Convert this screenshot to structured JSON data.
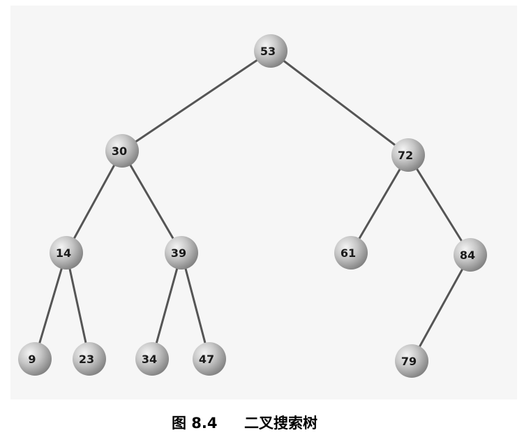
{
  "diagram": {
    "type": "binary-search-tree",
    "node_color": "#b9b9b9",
    "edge_color": "#555555",
    "nodes": [
      {
        "id": "n53",
        "label": "53"
      },
      {
        "id": "n30",
        "label": "30"
      },
      {
        "id": "n72",
        "label": "72"
      },
      {
        "id": "n14",
        "label": "14"
      },
      {
        "id": "n39",
        "label": "39"
      },
      {
        "id": "n61",
        "label": "61"
      },
      {
        "id": "n84",
        "label": "84"
      },
      {
        "id": "n9",
        "label": "9"
      },
      {
        "id": "n23",
        "label": "23"
      },
      {
        "id": "n34",
        "label": "34"
      },
      {
        "id": "n47",
        "label": "47"
      },
      {
        "id": "n79",
        "label": "79"
      }
    ],
    "edges": [
      {
        "from": "n53",
        "to": "n30"
      },
      {
        "from": "n53",
        "to": "n72"
      },
      {
        "from": "n30",
        "to": "n14"
      },
      {
        "from": "n30",
        "to": "n39"
      },
      {
        "from": "n72",
        "to": "n61"
      },
      {
        "from": "n72",
        "to": "n84"
      },
      {
        "from": "n14",
        "to": "n9"
      },
      {
        "from": "n14",
        "to": "n23"
      },
      {
        "from": "n39",
        "to": "n34"
      },
      {
        "from": "n39",
        "to": "n47"
      },
      {
        "from": "n84",
        "to": "n79"
      }
    ]
  },
  "caption": {
    "figure_number": "图 8.4",
    "title": "二叉搜索树"
  }
}
